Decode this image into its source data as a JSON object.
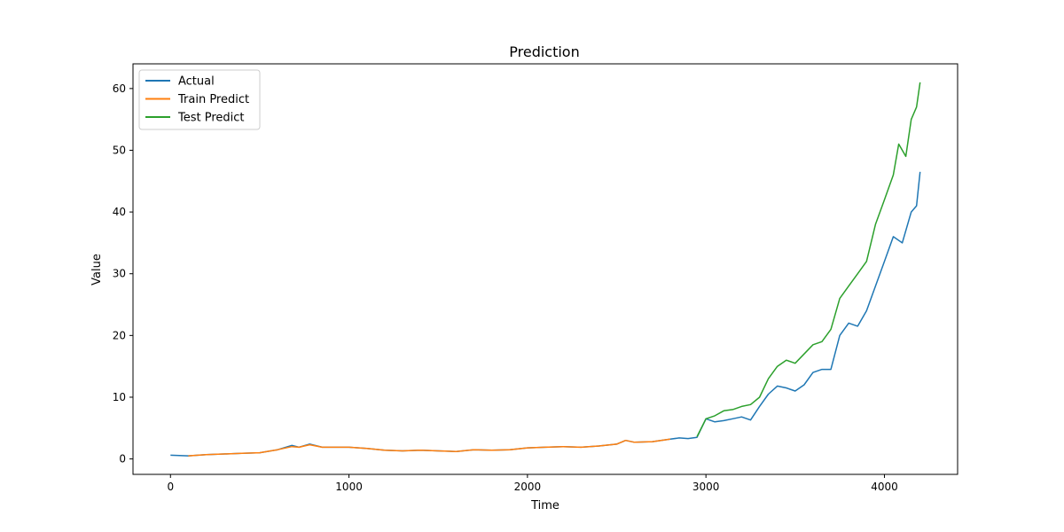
{
  "chart_data": {
    "type": "line",
    "title": "Prediction",
    "xlabel": "Time",
    "ylabel": "Value",
    "xlim": [
      -210,
      4410
    ],
    "ylim": [
      -2.5,
      64.0
    ],
    "xticks": [
      0,
      1000,
      2000,
      3000,
      4000
    ],
    "yticks": [
      0,
      10,
      20,
      30,
      40,
      50,
      60
    ],
    "grid": false,
    "legend_position": "top-left",
    "series": [
      {
        "name": "Actual",
        "color": "#1f77b4",
        "points": [
          [
            0,
            0.6
          ],
          [
            100,
            0.5
          ],
          [
            200,
            0.7
          ],
          [
            300,
            0.8
          ],
          [
            400,
            0.9
          ],
          [
            500,
            1.0
          ],
          [
            600,
            1.5
          ],
          [
            680,
            2.2
          ],
          [
            720,
            1.9
          ],
          [
            780,
            2.4
          ],
          [
            850,
            1.9
          ],
          [
            1000,
            1.9
          ],
          [
            1100,
            1.7
          ],
          [
            1200,
            1.4
          ],
          [
            1300,
            1.3
          ],
          [
            1400,
            1.4
          ],
          [
            1500,
            1.3
          ],
          [
            1600,
            1.2
          ],
          [
            1700,
            1.5
          ],
          [
            1800,
            1.4
          ],
          [
            1900,
            1.5
          ],
          [
            2000,
            1.8
          ],
          [
            2100,
            1.9
          ],
          [
            2200,
            2.0
          ],
          [
            2300,
            1.9
          ],
          [
            2400,
            2.1
          ],
          [
            2500,
            2.4
          ],
          [
            2550,
            3.0
          ],
          [
            2600,
            2.7
          ],
          [
            2700,
            2.8
          ],
          [
            2800,
            3.2
          ],
          [
            2850,
            3.4
          ],
          [
            2900,
            3.3
          ],
          [
            2950,
            3.5
          ],
          [
            3000,
            6.5
          ],
          [
            3050,
            6.0
          ],
          [
            3100,
            6.2
          ],
          [
            3150,
            6.5
          ],
          [
            3200,
            6.8
          ],
          [
            3250,
            6.3
          ],
          [
            3300,
            8.5
          ],
          [
            3350,
            10.5
          ],
          [
            3400,
            11.8
          ],
          [
            3450,
            11.5
          ],
          [
            3500,
            11.0
          ],
          [
            3550,
            12.0
          ],
          [
            3600,
            14.0
          ],
          [
            3650,
            14.5
          ],
          [
            3700,
            14.5
          ],
          [
            3750,
            20.0
          ],
          [
            3800,
            22.0
          ],
          [
            3850,
            21.5
          ],
          [
            3900,
            24.0
          ],
          [
            3950,
            28.0
          ],
          [
            4000,
            32.0
          ],
          [
            4050,
            36.0
          ],
          [
            4100,
            35.0
          ],
          [
            4150,
            40.0
          ],
          [
            4180,
            41.0
          ],
          [
            4200,
            46.5
          ]
        ]
      },
      {
        "name": "Train Predict",
        "color": "#ff7f0e",
        "points": [
          [
            100,
            0.5
          ],
          [
            200,
            0.7
          ],
          [
            300,
            0.8
          ],
          [
            400,
            0.9
          ],
          [
            500,
            1.0
          ],
          [
            600,
            1.5
          ],
          [
            680,
            2.0
          ],
          [
            720,
            1.9
          ],
          [
            780,
            2.3
          ],
          [
            850,
            1.9
          ],
          [
            1000,
            1.9
          ],
          [
            1100,
            1.7
          ],
          [
            1200,
            1.4
          ],
          [
            1300,
            1.3
          ],
          [
            1400,
            1.4
          ],
          [
            1500,
            1.3
          ],
          [
            1600,
            1.2
          ],
          [
            1700,
            1.5
          ],
          [
            1800,
            1.4
          ],
          [
            1900,
            1.5
          ],
          [
            2000,
            1.8
          ],
          [
            2100,
            1.9
          ],
          [
            2200,
            2.0
          ],
          [
            2300,
            1.9
          ],
          [
            2400,
            2.1
          ],
          [
            2500,
            2.4
          ],
          [
            2550,
            3.0
          ],
          [
            2600,
            2.7
          ],
          [
            2700,
            2.8
          ],
          [
            2800,
            3.2
          ]
        ]
      },
      {
        "name": "Test Predict",
        "color": "#2ca02c",
        "points": [
          [
            2950,
            3.6
          ],
          [
            3000,
            6.5
          ],
          [
            3050,
            7.0
          ],
          [
            3100,
            7.8
          ],
          [
            3150,
            8.0
          ],
          [
            3200,
            8.5
          ],
          [
            3250,
            8.8
          ],
          [
            3300,
            10.0
          ],
          [
            3350,
            13.0
          ],
          [
            3400,
            15.0
          ],
          [
            3450,
            16.0
          ],
          [
            3500,
            15.5
          ],
          [
            3550,
            17.0
          ],
          [
            3600,
            18.5
          ],
          [
            3650,
            19.0
          ],
          [
            3700,
            21.0
          ],
          [
            3750,
            26.0
          ],
          [
            3800,
            28.0
          ],
          [
            3850,
            30.0
          ],
          [
            3900,
            32.0
          ],
          [
            3950,
            38.0
          ],
          [
            4000,
            42.0
          ],
          [
            4050,
            46.0
          ],
          [
            4080,
            51.0
          ],
          [
            4120,
            49.0
          ],
          [
            4150,
            55.0
          ],
          [
            4180,
            57.0
          ],
          [
            4200,
            61.0
          ]
        ]
      }
    ]
  }
}
